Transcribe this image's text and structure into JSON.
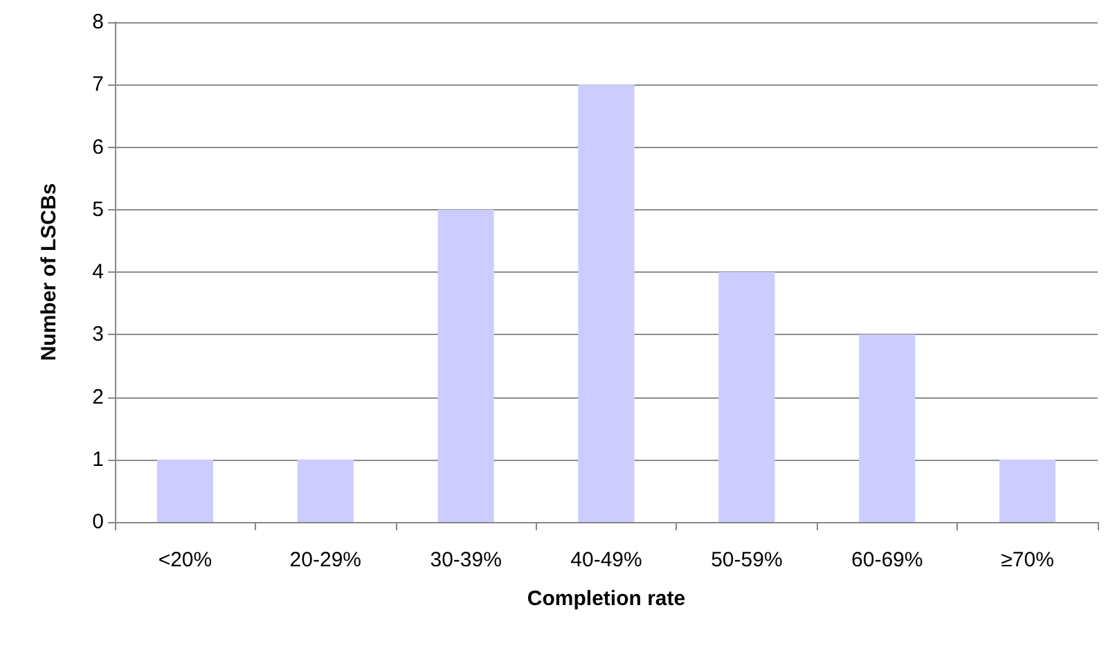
{
  "chart_data": {
    "type": "bar",
    "xlabel": "Completion rate",
    "ylabel": "Number of LSCBs",
    "categories": [
      "<20%",
      "20-29%",
      "30-39%",
      "40-49%",
      "50-59%",
      "60-69%",
      "≥70%"
    ],
    "values": [
      1,
      1,
      5,
      7,
      4,
      3,
      1
    ],
    "color": "#ccccff",
    "ylim": [
      0,
      8
    ],
    "yticks": [
      0,
      1,
      2,
      3,
      4,
      5,
      6,
      7,
      8
    ],
    "grid": "y"
  }
}
